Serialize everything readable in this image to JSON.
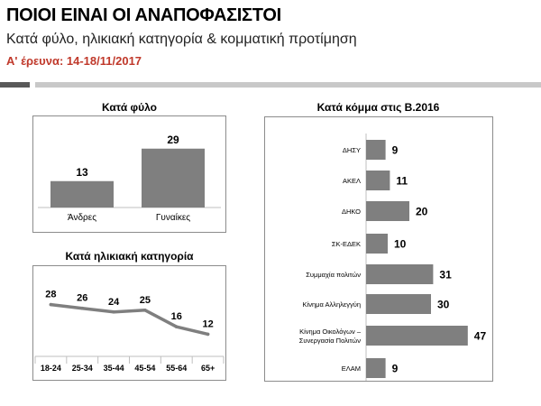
{
  "header": {
    "title": "ΠΟΙΟΙ ΕΙΝΑΙ ΟΙ ΑΝΑΠΟΦΑΣΙΣΤΟΙ",
    "subtitle": "Κατά φύλο, ηλικιακή κατηγορία & κομματική προτίμηση",
    "survey": "Α' έρευνα: 14-18/11/2017"
  },
  "colors": {
    "bar": "#7f7f7f",
    "line": "#7f7f7f",
    "accent_text": "#c0392b",
    "frame": "#8c8c8c"
  },
  "chart_data": [
    {
      "id": "gender",
      "type": "bar",
      "title": "Κατά φύλο",
      "categories": [
        "Άνδρες",
        "Γυναίκες"
      ],
      "values": [
        13,
        29
      ],
      "ylim": [
        0,
        40
      ]
    },
    {
      "id": "age",
      "type": "line",
      "title": "Κατά ηλικιακή κατηγορία",
      "categories": [
        "18-24",
        "25-34",
        "35-44",
        "45-54",
        "55-64",
        "65+"
      ],
      "values": [
        28,
        26,
        24,
        25,
        16,
        12
      ],
      "ylim": [
        0,
        40
      ]
    },
    {
      "id": "party",
      "type": "bar",
      "orientation": "horizontal",
      "title": "Κατά κόμμα στις Β.2016",
      "categories": [
        "ΔΗΣΥ",
        "ΑΚΕΛ",
        "ΔΗΚΟ",
        "ΣΚ-ΕΔΕΚ",
        "Συμμαχία πολιτών",
        "Κίνημα Αλληλεγγύη",
        "Κίνημα Οικολόγων –\nΣυνεργασία Πολιτών",
        "ΕΛΑΜ"
      ],
      "values": [
        9,
        11,
        20,
        10,
        31,
        30,
        47,
        9
      ],
      "xlim": [
        0,
        50
      ]
    }
  ]
}
